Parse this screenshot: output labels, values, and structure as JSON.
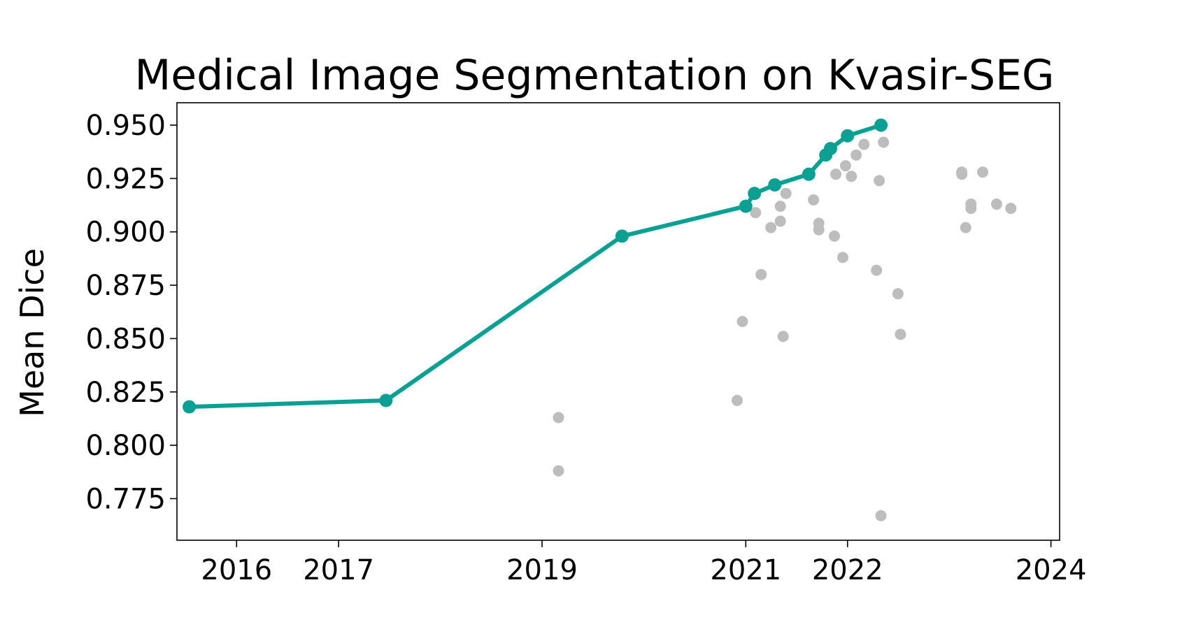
{
  "chart_data": {
    "type": "scatter",
    "title": "Medical Image Segmentation on Kvasir-SEG",
    "xlabel": "",
    "ylabel": "Mean Dice",
    "xlim": [
      "2015-06-01",
      "2024-02-01"
    ],
    "ylim": [
      0.7555,
      0.9605
    ],
    "x_tick_labels": [
      "2016",
      "2017",
      "2019",
      "2021",
      "2022",
      "2024"
    ],
    "x_tick_dates": [
      "2016-01-01",
      "2017-01-01",
      "2019-01-01",
      "2021-01-01",
      "2022-01-01",
      "2024-01-01"
    ],
    "y_ticks": [
      0.775,
      0.8,
      0.825,
      0.85,
      0.875,
      0.9,
      0.925,
      0.95
    ],
    "y_tick_labels": [
      "0.775",
      "0.800",
      "0.825",
      "0.850",
      "0.875",
      "0.900",
      "0.925",
      "0.950"
    ],
    "grid": false,
    "colors": {
      "sota": "#0aa194",
      "other": "#bdbdbd"
    },
    "series": [
      {
        "role": "state-of-the-art",
        "style": "line-with-markers",
        "color": "#0aa194",
        "points": [
          [
            "2015-07-15",
            0.818
          ],
          [
            "2017-06-20",
            0.821
          ],
          [
            "2019-10-15",
            0.898
          ],
          [
            "2021-01-01",
            0.912
          ],
          [
            "2021-02-01",
            0.918
          ],
          [
            "2021-04-15",
            0.922
          ],
          [
            "2021-08-15",
            0.927
          ],
          [
            "2021-10-15",
            0.936
          ],
          [
            "2021-11-01",
            0.939
          ],
          [
            "2022-01-01",
            0.945
          ],
          [
            "2022-05-01",
            0.95
          ]
        ]
      },
      {
        "role": "other submissions",
        "style": "markers",
        "color": "#bdbdbd",
        "points": [
          [
            "2019-03-01",
            0.813
          ],
          [
            "2019-03-01",
            0.788
          ],
          [
            "2020-12-01",
            0.821
          ],
          [
            "2020-12-20",
            0.858
          ],
          [
            "2021-02-05",
            0.909
          ],
          [
            "2021-02-25",
            0.88
          ],
          [
            "2021-04-01",
            0.902
          ],
          [
            "2021-05-05",
            0.912
          ],
          [
            "2021-05-05",
            0.905
          ],
          [
            "2021-05-15",
            0.851
          ],
          [
            "2021-05-25",
            0.918
          ],
          [
            "2021-09-01",
            0.915
          ],
          [
            "2021-09-20",
            0.904
          ],
          [
            "2021-09-20",
            0.901
          ],
          [
            "2021-11-20",
            0.927
          ],
          [
            "2021-11-15",
            0.898
          ],
          [
            "2021-12-15",
            0.888
          ],
          [
            "2021-12-25",
            0.931
          ],
          [
            "2022-01-15",
            0.926
          ],
          [
            "2022-02-01",
            0.936
          ],
          [
            "2022-03-01",
            0.941
          ],
          [
            "2022-04-15",
            0.882
          ],
          [
            "2022-04-25",
            0.924
          ],
          [
            "2022-05-01",
            0.767
          ],
          [
            "2022-05-10",
            0.942
          ],
          [
            "2022-07-01",
            0.871
          ],
          [
            "2022-07-10",
            0.852
          ],
          [
            "2023-02-15",
            0.927
          ],
          [
            "2023-02-15",
            0.928
          ],
          [
            "2023-03-01",
            0.902
          ],
          [
            "2023-03-20",
            0.913
          ],
          [
            "2023-03-20",
            0.911
          ],
          [
            "2023-05-01",
            0.928
          ],
          [
            "2023-06-20",
            0.913
          ],
          [
            "2023-08-10",
            0.911
          ]
        ]
      }
    ]
  }
}
